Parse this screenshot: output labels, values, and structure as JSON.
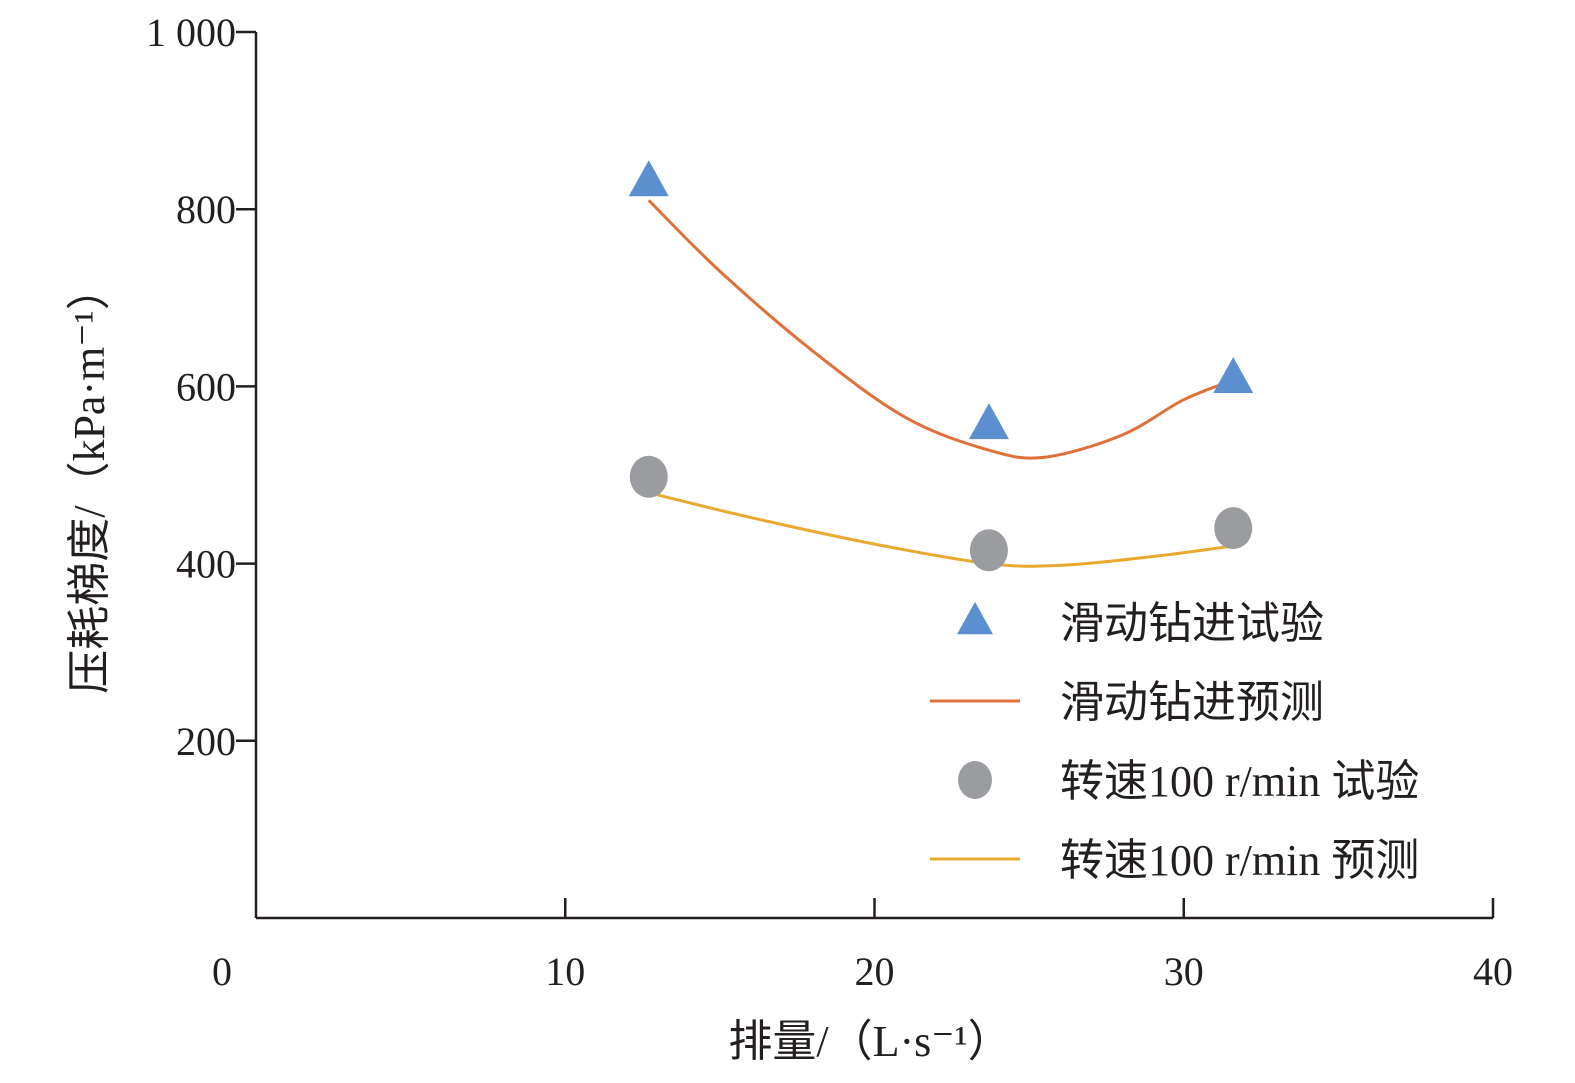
{
  "chart_data": {
    "type": "scatter",
    "xlabel": "排量/（L·s⁻¹）",
    "ylabel": "压耗梯度/（kPa·m⁻¹）",
    "xlim": [
      0,
      40
    ],
    "ylim": [
      0,
      1000
    ],
    "x_ticks": [
      "0",
      "10",
      "20",
      "30",
      "40"
    ],
    "y_ticks": [
      "200",
      "400",
      "600",
      "800",
      "1 000"
    ],
    "y_tick_values": [
      200,
      400,
      600,
      800,
      1000
    ],
    "x_tick_values": [
      0,
      10,
      20,
      30,
      40
    ],
    "grid": false,
    "legend_position": "bottom-right",
    "series": [
      {
        "name": "滑动钻进试验",
        "kind": "marker",
        "marker": "triangle",
        "color": "#5b8fd0",
        "x": [
          12.7,
          23.7,
          31.6
        ],
        "y": [
          830,
          556,
          608
        ]
      },
      {
        "name": "滑动钻进预测",
        "kind": "line",
        "color": "#e0703a",
        "x": [
          12.7,
          15,
          18,
          21,
          23.7,
          25.5,
          28,
          30,
          31.6
        ],
        "y": [
          810,
          730,
          640,
          565,
          528,
          520,
          545,
          585,
          607
        ]
      },
      {
        "name": "转速100 r/min 试验",
        "kind": "marker",
        "marker": "circle",
        "color": "#9b9c9f",
        "x": [
          12.7,
          23.7,
          31.6
        ],
        "y": [
          498,
          415,
          440
        ]
      },
      {
        "name": "转速100 r/min 预测",
        "kind": "line",
        "color": "#e9a92f",
        "x": [
          12.7,
          16,
          20,
          23.7,
          26,
          29,
          31.6
        ],
        "y": [
          480,
          452,
          422,
          400,
          398,
          408,
          420
        ]
      }
    ]
  }
}
